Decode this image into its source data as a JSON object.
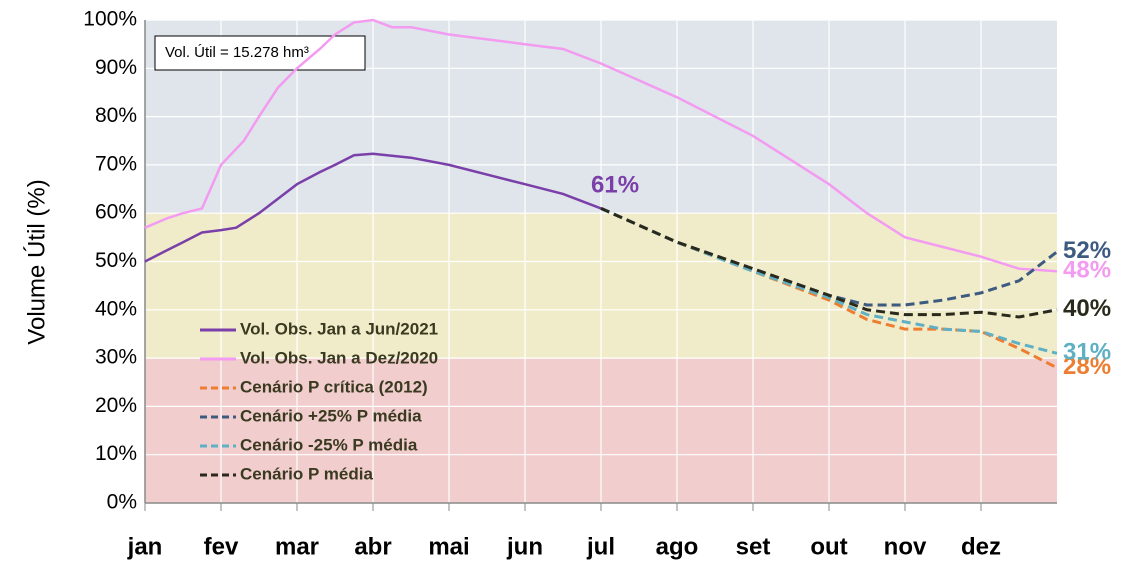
{
  "chart_data": {
    "type": "line",
    "y_label": "Volume  Útil (%)",
    "annotation": "Vol. Útil = 15.278 hm³",
    "xlim": [
      0,
      12
    ],
    "xticks": [
      {
        "value": 0,
        "label": "jan"
      },
      {
        "value": 1,
        "label": "fev"
      },
      {
        "value": 2,
        "label": "mar"
      },
      {
        "value": 3,
        "label": "abr"
      },
      {
        "value": 4,
        "label": "mai"
      },
      {
        "value": 5,
        "label": "jun"
      },
      {
        "value": 6,
        "label": "jul"
      },
      {
        "value": 7,
        "label": "ago"
      },
      {
        "value": 8,
        "label": "set"
      },
      {
        "value": 9,
        "label": "out"
      },
      {
        "value": 10,
        "label": "nov"
      },
      {
        "value": 11,
        "label": "dez"
      }
    ],
    "ylim": [
      0,
      100
    ],
    "yticks": [
      {
        "value": 0,
        "label": "0%"
      },
      {
        "value": 10,
        "label": "10%"
      },
      {
        "value": 20,
        "label": "20%"
      },
      {
        "value": 30,
        "label": "30%"
      },
      {
        "value": 40,
        "label": "40%"
      },
      {
        "value": 50,
        "label": "50%"
      },
      {
        "value": 60,
        "label": "60%"
      },
      {
        "value": 70,
        "label": "70%"
      },
      {
        "value": 80,
        "label": "80%"
      },
      {
        "value": 90,
        "label": "90%"
      },
      {
        "value": 100,
        "label": "100%"
      }
    ],
    "grid": true,
    "bands": [
      {
        "from": 0,
        "to": 30,
        "color": "#f1cdcd"
      },
      {
        "from": 30,
        "to": 60,
        "color": "#f0ecca"
      },
      {
        "from": 60,
        "to": 100,
        "color": "#dfe5ea"
      }
    ],
    "series": [
      {
        "name": "Vol. Obs. Jan a Jun/2021",
        "color": "#7a3fa8",
        "dash": false,
        "x": [
          0,
          0.25,
          0.5,
          0.75,
          1,
          1.2,
          1.5,
          2,
          2.3,
          2.5,
          2.75,
          3,
          3.5,
          4,
          4.5,
          5,
          5.5,
          6
        ],
        "values": [
          50,
          52,
          54,
          56,
          56.5,
          57,
          60,
          66,
          68.5,
          70,
          72,
          72.3,
          71.5,
          70,
          68,
          66,
          64,
          61
        ],
        "value_labels": [
          null,
          null,
          null,
          null,
          null,
          null,
          null,
          null,
          null,
          null,
          null,
          null,
          null,
          null,
          null,
          null,
          null,
          "61%"
        ]
      },
      {
        "name": "Vol. Obs. Jan a Dez/2020",
        "color": "#f39bf0",
        "dash": false,
        "x": [
          0,
          0.3,
          0.5,
          0.75,
          1,
          1.3,
          1.5,
          1.75,
          2,
          2.3,
          2.5,
          2.75,
          3,
          3.25,
          3.5,
          4,
          5,
          5.5,
          6,
          7,
          8,
          9,
          9.5,
          10,
          10.5,
          11,
          11.5,
          12
        ],
        "values": [
          57,
          59,
          60,
          61,
          70,
          75,
          80,
          86,
          90,
          94,
          97,
          99.5,
          100,
          98.5,
          98.5,
          97,
          95,
          94,
          91,
          84,
          76,
          66,
          60,
          55,
          53,
          51,
          48.5,
          48
        ],
        "value_labels": [
          null,
          null,
          null,
          null,
          null,
          null,
          null,
          null,
          null,
          null,
          null,
          null,
          null,
          null,
          null,
          null,
          null,
          null,
          null,
          null,
          null,
          null,
          null,
          null,
          null,
          null,
          null,
          "48%"
        ]
      },
      {
        "name": "Cenário P crítica (2012)",
        "color": "#ed7d31",
        "dash": true,
        "x": [
          6,
          7,
          8,
          9,
          9.5,
          10,
          10.5,
          11,
          11.5,
          12
        ],
        "values": [
          61,
          54,
          48,
          42,
          38,
          36,
          36,
          35.5,
          32,
          28
        ],
        "value_labels": [
          null,
          null,
          null,
          null,
          null,
          null,
          null,
          null,
          null,
          "28%"
        ]
      },
      {
        "name": "Cenário +25% P média",
        "color": "#3d5a80",
        "dash": true,
        "x": [
          6,
          7,
          8,
          9,
          9.5,
          10,
          10.5,
          11,
          11.5,
          12
        ],
        "values": [
          61,
          54,
          48.5,
          43,
          41,
          41,
          42,
          43.5,
          46,
          52
        ],
        "value_labels": [
          null,
          null,
          null,
          null,
          null,
          null,
          null,
          null,
          null,
          "52%"
        ]
      },
      {
        "name": "Cenário -25% P média",
        "color": "#5fb0c4",
        "dash": true,
        "x": [
          6,
          7,
          8,
          9,
          9.5,
          10,
          10.5,
          11,
          11.5,
          12
        ],
        "values": [
          61,
          54,
          48,
          42.5,
          39,
          37.5,
          36,
          35.5,
          33,
          31
        ],
        "value_labels": [
          null,
          null,
          null,
          null,
          null,
          null,
          null,
          null,
          null,
          "31%"
        ]
      },
      {
        "name": "Cenário P média",
        "color": "#2a2a1c",
        "dash": true,
        "x": [
          6,
          7,
          8,
          9,
          9.5,
          10,
          10.5,
          11,
          11.5,
          12
        ],
        "values": [
          61,
          54,
          48.5,
          43,
          40,
          39,
          39,
          39.5,
          38.5,
          40
        ],
        "value_labels": [
          null,
          null,
          null,
          null,
          null,
          null,
          null,
          null,
          null,
          "40%"
        ]
      }
    ]
  }
}
